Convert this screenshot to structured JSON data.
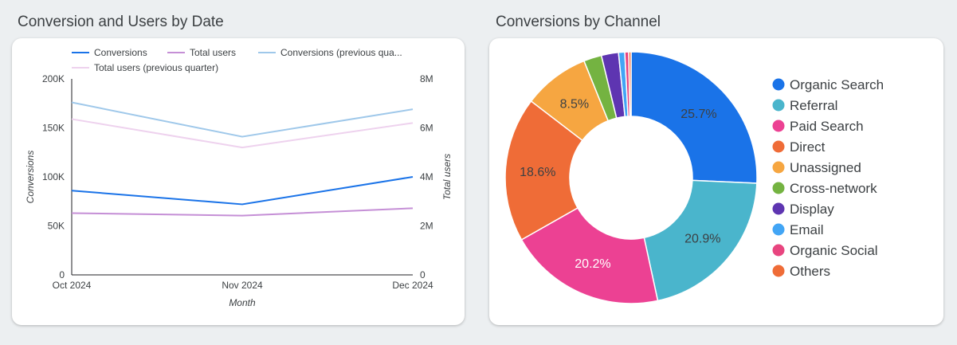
{
  "line_panel": {
    "title": "Conversion and Users by Date"
  },
  "pie_panel": {
    "title": "Conversions by Channel"
  },
  "chart_data": [
    {
      "type": "line",
      "title": "Conversion and Users by Date",
      "xlabel": "Month",
      "ylabel": "Conversions",
      "y2label": "Total users",
      "categories": [
        "Oct 2024",
        "Nov 2024",
        "Dec 2024"
      ],
      "ylim": [
        0,
        200000
      ],
      "y2lim": [
        0,
        8000000
      ],
      "y_ticks": [
        "0",
        "50K",
        "100K",
        "150K",
        "200K"
      ],
      "y2_ticks": [
        "0",
        "2M",
        "4M",
        "6M",
        "8M"
      ],
      "legend_position": "top",
      "grid": false,
      "series": [
        {
          "name": "Conversions",
          "axis": "left",
          "color": "#1a73e8",
          "values": [
            86000,
            72000,
            100000
          ]
        },
        {
          "name": "Total users",
          "axis": "right",
          "color": "#c58fd6",
          "values": [
            2520000,
            2420000,
            2720000
          ]
        },
        {
          "name": "Conversions (previous qua...",
          "axis": "left",
          "color": "#9fc8ea",
          "values": [
            176000,
            141000,
            169000
          ]
        },
        {
          "name": "Total users (previous quarter)",
          "axis": "right",
          "color": "#eed2ee",
          "values": [
            6360000,
            5200000,
            6200000
          ]
        }
      ]
    },
    {
      "type": "pie",
      "title": "Conversions by Channel",
      "donut": true,
      "legend_position": "right",
      "slices": [
        {
          "label": "Organic Search",
          "value": 25.7,
          "display": "25.7%",
          "color": "#1a73e8"
        },
        {
          "label": "Referral",
          "value": 20.9,
          "display": "20.9%",
          "color": "#4ab5cc"
        },
        {
          "label": "Paid Search",
          "value": 20.2,
          "display": "20.2%",
          "color": "#ec4193"
        },
        {
          "label": "Direct",
          "value": 18.6,
          "display": "18.6%",
          "color": "#ef6c37"
        },
        {
          "label": "Unassigned",
          "value": 8.5,
          "display": "8.5%",
          "color": "#f6a641"
        },
        {
          "label": "Cross-network",
          "value": 2.3,
          "display": "",
          "color": "#74b341"
        },
        {
          "label": "Display",
          "value": 2.2,
          "display": "",
          "color": "#5e35b1"
        },
        {
          "label": "Email",
          "value": 0.8,
          "display": "",
          "color": "#42a5f5"
        },
        {
          "label": "Organic Social",
          "value": 0.5,
          "display": "",
          "color": "#e8457f"
        },
        {
          "label": "Others",
          "value": 0.3,
          "display": "",
          "color": "#ef6c37"
        }
      ]
    }
  ]
}
